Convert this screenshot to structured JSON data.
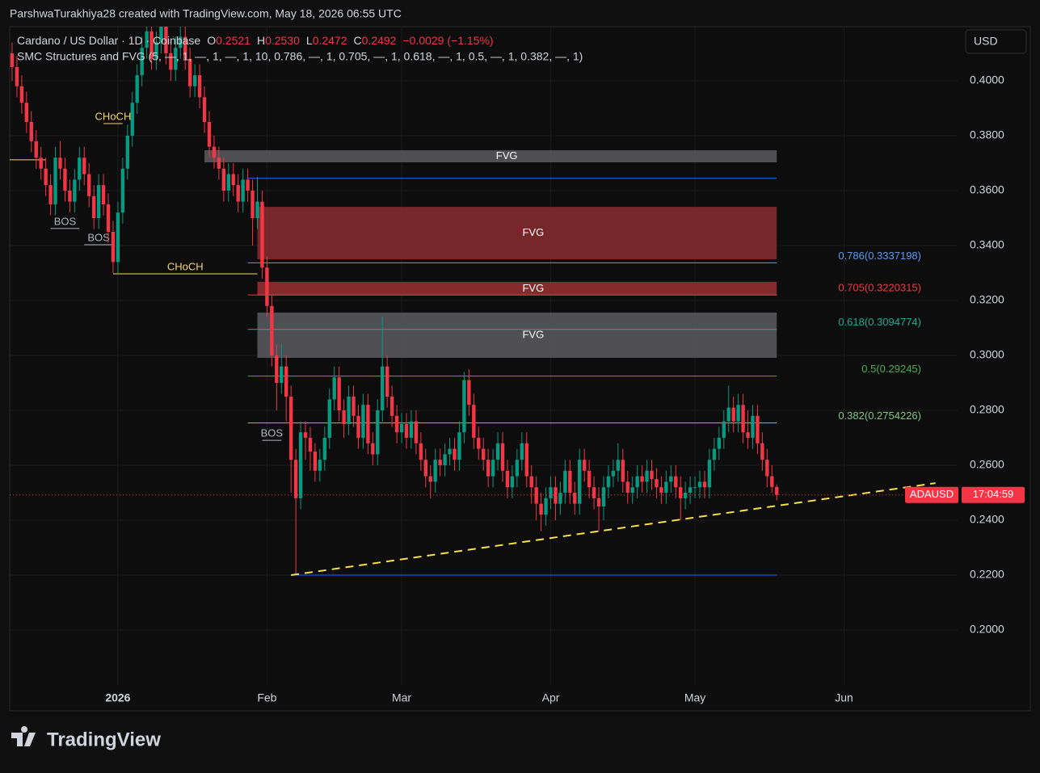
{
  "header": {
    "attribution": "ParshwaTurakhiya28 created with TradingView.com, May 18, 2026 06:55 UTC",
    "symbol": "Cardano / US Dollar · 1D · Coinbase",
    "ohlc": [
      {
        "key": "O",
        "value": "0.2521"
      },
      {
        "key": "H",
        "value": "0.2530"
      },
      {
        "key": "L",
        "value": "0.2472"
      },
      {
        "key": "C",
        "value": "0.2492"
      }
    ],
    "change": "−0.0029 (−1.15%)",
    "indicator": "SMC Structures and FVG (5, —, 1, —, 1, —, 1, 10, 0.786, —, 1, 0.705, —, 1, 0.618, —, 1, 0.5, —, 1, 0.382, —, 1)"
  },
  "footer": {
    "logo": "TradingView"
  },
  "chart_data": {
    "type": "candlestick",
    "up_color": "#089981",
    "down_color": "#f23645",
    "grid": true,
    "currency": "USD",
    "xlim": [
      -0.5,
      196.6
    ],
    "ylim": [
      0.1706,
      0.4197
    ],
    "xticks": [
      {
        "value": 22,
        "label": "2026"
      },
      {
        "value": 53,
        "label": "Feb"
      },
      {
        "value": 81,
        "label": "Mar"
      },
      {
        "value": 112,
        "label": "Apr"
      },
      {
        "value": 142,
        "label": "May"
      },
      {
        "value": 173,
        "label": "Jun"
      }
    ],
    "yticks": [
      {
        "value": 0.2,
        "label": "0.2000"
      },
      {
        "value": 0.22,
        "label": "0.2200"
      },
      {
        "value": 0.24,
        "label": "0.2400"
      },
      {
        "value": 0.26,
        "label": "0.2600"
      },
      {
        "value": 0.28,
        "label": "0.2800"
      },
      {
        "value": 0.3,
        "label": "0.3000"
      },
      {
        "value": 0.32,
        "label": "0.3200"
      },
      {
        "value": 0.34,
        "label": "0.3400"
      },
      {
        "value": 0.36,
        "label": "0.3600"
      },
      {
        "value": 0.38,
        "label": "0.3800"
      },
      {
        "value": 0.4,
        "label": "0.4000"
      }
    ],
    "open": [
      0.41,
      0.405,
      0.398,
      0.392,
      0.385,
      0.378,
      0.372,
      0.368,
      0.362,
      0.355,
      0.372,
      0.368,
      0.36,
      0.356,
      0.364,
      0.372,
      0.366,
      0.358,
      0.35,
      0.362,
      0.355,
      0.345,
      0.334,
      0.352,
      0.368,
      0.38,
      0.392,
      0.402,
      0.412,
      0.418,
      0.408,
      0.414,
      0.42,
      0.41,
      0.404,
      0.412,
      0.416,
      0.408,
      0.398,
      0.402,
      0.394,
      0.385,
      0.376,
      0.372,
      0.368,
      0.36,
      0.366,
      0.362,
      0.356,
      0.364,
      0.36,
      0.35,
      0.356,
      0.332,
      0.318,
      0.3,
      0.29,
      0.296,
      0.285,
      0.262,
      0.248,
      0.272,
      0.27,
      0.265,
      0.258,
      0.262,
      0.27,
      0.284,
      0.292,
      0.28,
      0.275,
      0.285,
      0.278,
      0.27,
      0.282,
      0.268,
      0.264,
      0.28,
      0.296,
      0.285,
      0.278,
      0.272,
      0.275,
      0.27,
      0.276,
      0.268,
      0.262,
      0.256,
      0.254,
      0.262,
      0.26,
      0.264,
      0.266,
      0.262,
      0.272,
      0.291,
      0.282,
      0.27,
      0.266,
      0.262,
      0.256,
      0.262,
      0.268,
      0.258,
      0.252,
      0.256,
      0.262,
      0.268,
      0.256,
      0.252,
      0.246,
      0.242,
      0.248,
      0.252,
      0.246,
      0.25,
      0.258,
      0.25,
      0.246,
      0.262,
      0.258,
      0.252,
      0.248,
      0.245,
      0.252,
      0.256,
      0.258,
      0.262,
      0.254,
      0.25,
      0.252,
      0.256,
      0.254,
      0.258,
      0.255,
      0.252,
      0.25,
      0.254,
      0.256,
      0.252,
      0.248,
      0.25,
      0.252,
      0.252,
      0.254,
      0.252,
      0.262,
      0.266,
      0.27,
      0.276,
      0.281,
      0.276,
      0.282,
      0.272,
      0.27,
      0.278,
      0.268,
      0.262,
      0.256,
      0.2521
    ],
    "high": [
      0.414,
      0.409,
      0.402,
      0.396,
      0.389,
      0.382,
      0.376,
      0.372,
      0.366,
      0.376,
      0.378,
      0.372,
      0.364,
      0.368,
      0.376,
      0.376,
      0.37,
      0.362,
      0.366,
      0.366,
      0.359,
      0.349,
      0.356,
      0.372,
      0.384,
      0.396,
      0.406,
      0.416,
      0.422,
      0.422,
      0.418,
      0.424,
      0.424,
      0.414,
      0.416,
      0.42,
      0.42,
      0.412,
      0.406,
      0.406,
      0.398,
      0.389,
      0.38,
      0.376,
      0.372,
      0.37,
      0.37,
      0.366,
      0.368,
      0.368,
      0.364,
      0.365,
      0.36,
      0.336,
      0.322,
      0.304,
      0.304,
      0.3,
      0.289,
      0.266,
      0.276,
      0.276,
      0.274,
      0.268,
      0.266,
      0.274,
      0.288,
      0.296,
      0.296,
      0.284,
      0.289,
      0.289,
      0.282,
      0.286,
      0.286,
      0.272,
      0.284,
      0.314,
      0.3,
      0.289,
      0.282,
      0.279,
      0.279,
      0.28,
      0.28,
      0.272,
      0.266,
      0.26,
      0.266,
      0.266,
      0.268,
      0.27,
      0.27,
      0.276,
      0.294,
      0.295,
      0.286,
      0.274,
      0.27,
      0.266,
      0.266,
      0.272,
      0.272,
      0.262,
      0.26,
      0.266,
      0.272,
      0.272,
      0.26,
      0.256,
      0.25,
      0.252,
      0.256,
      0.256,
      0.254,
      0.262,
      0.262,
      0.254,
      0.266,
      0.266,
      0.262,
      0.256,
      0.252,
      0.256,
      0.26,
      0.262,
      0.268,
      0.266,
      0.258,
      0.256,
      0.26,
      0.26,
      0.262,
      0.262,
      0.259,
      0.256,
      0.258,
      0.26,
      0.26,
      0.256,
      0.254,
      0.256,
      0.256,
      0.258,
      0.258,
      0.266,
      0.27,
      0.274,
      0.28,
      0.289,
      0.285,
      0.286,
      0.286,
      0.28,
      0.282,
      0.282,
      0.272,
      0.266,
      0.26,
      0.253
    ],
    "low": [
      0.4,
      0.394,
      0.388,
      0.381,
      0.374,
      0.368,
      0.364,
      0.358,
      0.351,
      0.351,
      0.364,
      0.356,
      0.352,
      0.352,
      0.36,
      0.362,
      0.354,
      0.346,
      0.346,
      0.351,
      0.341,
      0.33,
      0.33,
      0.348,
      0.364,
      0.376,
      0.388,
      0.398,
      0.408,
      0.404,
      0.404,
      0.41,
      0.406,
      0.4,
      0.4,
      0.408,
      0.404,
      0.394,
      0.394,
      0.39,
      0.381,
      0.372,
      0.368,
      0.364,
      0.356,
      0.356,
      0.358,
      0.352,
      0.352,
      0.356,
      0.34,
      0.346,
      0.328,
      0.314,
      0.296,
      0.28,
      0.286,
      0.276,
      0.25,
      0.22,
      0.244,
      0.262,
      0.258,
      0.254,
      0.254,
      0.258,
      0.266,
      0.28,
      0.276,
      0.27,
      0.271,
      0.274,
      0.266,
      0.266,
      0.264,
      0.26,
      0.26,
      0.276,
      0.281,
      0.274,
      0.268,
      0.268,
      0.266,
      0.266,
      0.264,
      0.258,
      0.252,
      0.248,
      0.25,
      0.256,
      0.256,
      0.26,
      0.258,
      0.258,
      0.268,
      0.278,
      0.266,
      0.262,
      0.258,
      0.252,
      0.252,
      0.258,
      0.254,
      0.248,
      0.248,
      0.252,
      0.258,
      0.252,
      0.246,
      0.24,
      0.236,
      0.238,
      0.244,
      0.24,
      0.242,
      0.246,
      0.246,
      0.242,
      0.242,
      0.254,
      0.248,
      0.244,
      0.236,
      0.24,
      0.248,
      0.252,
      0.254,
      0.25,
      0.246,
      0.246,
      0.248,
      0.25,
      0.25,
      0.251,
      0.248,
      0.246,
      0.246,
      0.25,
      0.248,
      0.24,
      0.244,
      0.246,
      0.248,
      0.248,
      0.248,
      0.248,
      0.258,
      0.262,
      0.266,
      0.272,
      0.272,
      0.272,
      0.268,
      0.266,
      0.266,
      0.264,
      0.258,
      0.252,
      0.25,
      0.2472
    ],
    "close": [
      0.405,
      0.398,
      0.392,
      0.385,
      0.378,
      0.372,
      0.368,
      0.362,
      0.355,
      0.372,
      0.368,
      0.36,
      0.356,
      0.364,
      0.372,
      0.366,
      0.358,
      0.35,
      0.362,
      0.355,
      0.345,
      0.334,
      0.352,
      0.368,
      0.38,
      0.392,
      0.402,
      0.412,
      0.418,
      0.408,
      0.414,
      0.42,
      0.41,
      0.404,
      0.412,
      0.416,
      0.408,
      0.398,
      0.402,
      0.394,
      0.385,
      0.376,
      0.372,
      0.368,
      0.36,
      0.366,
      0.362,
      0.356,
      0.364,
      0.36,
      0.35,
      0.356,
      0.332,
      0.318,
      0.3,
      0.29,
      0.296,
      0.285,
      0.262,
      0.248,
      0.272,
      0.27,
      0.265,
      0.258,
      0.262,
      0.27,
      0.284,
      0.292,
      0.28,
      0.275,
      0.285,
      0.278,
      0.27,
      0.282,
      0.268,
      0.264,
      0.28,
      0.296,
      0.285,
      0.278,
      0.272,
      0.275,
      0.27,
      0.276,
      0.268,
      0.262,
      0.256,
      0.254,
      0.262,
      0.26,
      0.264,
      0.266,
      0.262,
      0.272,
      0.291,
      0.282,
      0.27,
      0.266,
      0.262,
      0.256,
      0.262,
      0.268,
      0.258,
      0.252,
      0.256,
      0.262,
      0.268,
      0.256,
      0.252,
      0.246,
      0.242,
      0.248,
      0.252,
      0.246,
      0.25,
      0.258,
      0.25,
      0.246,
      0.262,
      0.258,
      0.252,
      0.248,
      0.245,
      0.252,
      0.256,
      0.258,
      0.262,
      0.254,
      0.25,
      0.252,
      0.256,
      0.254,
      0.258,
      0.255,
      0.252,
      0.25,
      0.254,
      0.256,
      0.252,
      0.248,
      0.25,
      0.252,
      0.252,
      0.254,
      0.252,
      0.262,
      0.266,
      0.27,
      0.276,
      0.281,
      0.276,
      0.282,
      0.272,
      0.27,
      0.278,
      0.268,
      0.262,
      0.256,
      0.2521,
      0.2492
    ],
    "fvg": [
      {
        "label": "FVG",
        "top": 0.3747,
        "bottom": 0.3703,
        "from": 40,
        "to": 159,
        "color": "#5a5b60"
      },
      {
        "label": "FVG",
        "top": 0.3541,
        "bottom": 0.335,
        "from": 51,
        "to": 159,
        "color": "#8a2d2f"
      },
      {
        "label": "FVG",
        "top": 0.3268,
        "bottom": 0.3218,
        "from": 51,
        "to": 159,
        "color": "#9a2f33"
      },
      {
        "label": "FVG",
        "top": 0.3156,
        "bottom": 0.2991,
        "from": 51,
        "to": 159,
        "color": "#5a5b60"
      }
    ],
    "swing_lines": [
      {
        "value": 0.3645,
        "from": 49,
        "to": 159,
        "color": "#2962ff"
      },
      {
        "value": 0.22,
        "from": 58,
        "to": 159,
        "color": "#2962ff"
      }
    ],
    "fib_levels": [
      {
        "label": "0.786(0.3337198)",
        "value": 0.3337198,
        "color": "#5b9cf6"
      },
      {
        "label": "0.705(0.3220315)",
        "value": 0.3220315,
        "color": "#f23645"
      },
      {
        "label": "0.618(0.3094774)",
        "value": 0.3094774,
        "color": "#22ab94"
      },
      {
        "label": "0.5(0.29245)",
        "value": 0.29245,
        "color": "#4caf50"
      },
      {
        "label": "0.382(0.2754226)",
        "value": 0.2754226,
        "color": "#81c784"
      }
    ],
    "fib_from": 49,
    "fib_to": 159,
    "structures": [
      {
        "label": "BOS",
        "value": 0.3462,
        "from": 8,
        "to": 14,
        "color": "#b2b5be"
      },
      {
        "label": "BOS",
        "value": 0.3403,
        "from": 15,
        "to": 21,
        "color": "#b2b5be"
      },
      {
        "label": "CHoCH",
        "value": 0.3844,
        "from": 19,
        "to": 23,
        "color": "#f7d774"
      },
      {
        "label": "CHoCH",
        "value": 0.3297,
        "from": 21,
        "to": 51,
        "color": "#f7d774"
      },
      {
        "label": "BOS",
        "value": 0.2691,
        "from": 52,
        "to": 56,
        "color": "#b2b5be"
      }
    ],
    "level_line": {
      "value": 0.3712,
      "from": -0.5,
      "to": 7,
      "color": "#f7d774"
    },
    "trendline": {
      "x": [
        58,
        192
      ],
      "y": [
        0.22,
        0.2535
      ],
      "color": "#f7e04a"
    },
    "last_price": {
      "symbol": "ADAUSD",
      "value": 0.2492,
      "countdown": "17:04:59"
    }
  }
}
